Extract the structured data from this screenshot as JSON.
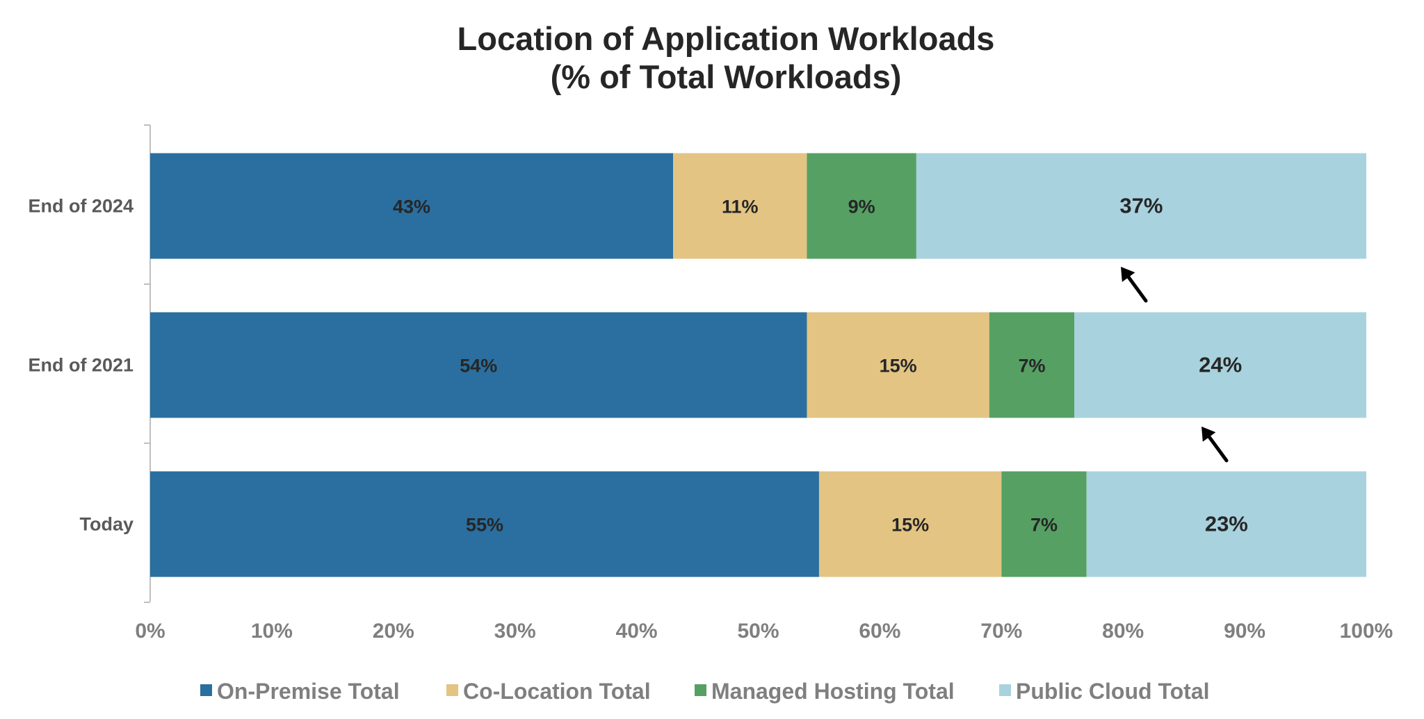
{
  "chart_data": {
    "type": "bar",
    "orientation": "horizontal",
    "stacked": true,
    "title": "Location of Application Workloads",
    "subtitle": "(% of Total Workloads)",
    "xlabel": "",
    "ylabel": "",
    "categories": [
      "End of 2024",
      "End of 2021",
      "Today"
    ],
    "series": [
      {
        "name": "On-Premise Total",
        "color": "#2a6f9f",
        "values": [
          43,
          54,
          55
        ],
        "labels": [
          "43%",
          "54%",
          "55%"
        ]
      },
      {
        "name": "Co-Location Total",
        "color": "#e3c483",
        "values": [
          11,
          15,
          15
        ],
        "labels": [
          "11%",
          "15%",
          "15%"
        ]
      },
      {
        "name": "Managed Hosting Total",
        "color": "#56a064",
        "values": [
          9,
          7,
          7
        ],
        "labels": [
          "9%",
          "7%",
          "7%"
        ]
      },
      {
        "name": "Public Cloud Total",
        "color": "#a8d2de",
        "values": [
          37,
          24,
          23
        ],
        "labels": [
          "37%",
          "24%",
          "23%"
        ]
      }
    ],
    "xlim": [
      0,
      100
    ],
    "xticks": [
      "0%",
      "10%",
      "20%",
      "30%",
      "40%",
      "50%",
      "60%",
      "70%",
      "80%",
      "90%",
      "100%"
    ],
    "grid": false,
    "legend_position": "bottom",
    "annotations": [
      {
        "type": "arrow-icon",
        "note": "arrow pointing up-left toward End of 2024 public cloud segment"
      },
      {
        "type": "arrow-icon",
        "note": "arrow pointing up-left toward End of 2021 public cloud segment"
      }
    ]
  }
}
